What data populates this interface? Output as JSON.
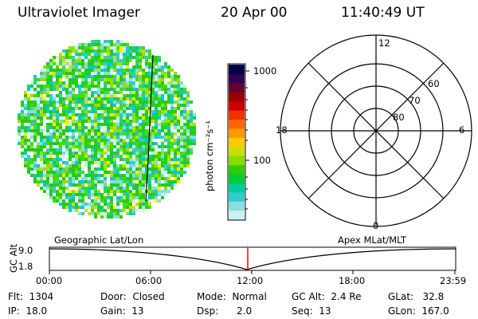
{
  "header": {
    "instrument": "Ultraviolet Imager",
    "date": "20 Apr 00",
    "time": "11:40:49 UT"
  },
  "colorbar": {
    "unit_label": "photon cm⁻²s⁻¹",
    "ticks": [
      "1000",
      "100"
    ],
    "colors": [
      "#000044",
      "#330055",
      "#660033",
      "#990000",
      "#cc0000",
      "#ee3300",
      "#ff6600",
      "#ff9900",
      "#ffcc00",
      "#ccdd00",
      "#88dd00",
      "#33cc00",
      "#00cc33",
      "#00cc99",
      "#33cccc",
      "#88dddd",
      "#ccefef"
    ]
  },
  "polar_grid": {
    "lat_labels": [
      "60",
      "70",
      "80"
    ],
    "mlt_labels": {
      "top": "12",
      "left": "18",
      "right": "6",
      "bottom": "0"
    }
  },
  "altitude_panel": {
    "left_label": "Geographic Lat/Lon",
    "right_label": "Apex MLat/MLT",
    "y_axis_label": "GC Alt",
    "y_ticks": [
      "9.0",
      "1.8"
    ],
    "x_ticks": [
      "00:00",
      "06:00",
      "12:00",
      "18:00",
      "23:59"
    ],
    "current_time_marker_color": "#ff0000"
  },
  "info": {
    "flt": "Flt:  1304",
    "door": "Door:  Closed",
    "mode": "Mode:  Normal",
    "gcalt": "GC Alt:  2.4 Re",
    "glat": "GLat:   32.8",
    "ip": "IP:  18.0",
    "gain": "Gain:  13",
    "dsp": "Dsp:      2.0",
    "seq": "Seq:  13",
    "glon": "GLon:  167.0"
  },
  "image_palette": [
    "#22cc22",
    "#44dd00",
    "#99dd00",
    "#ccdd00",
    "#ffee00",
    "#00cccc",
    "#33cccc",
    "#88dddd",
    "#ccefef",
    "#ffffff"
  ]
}
